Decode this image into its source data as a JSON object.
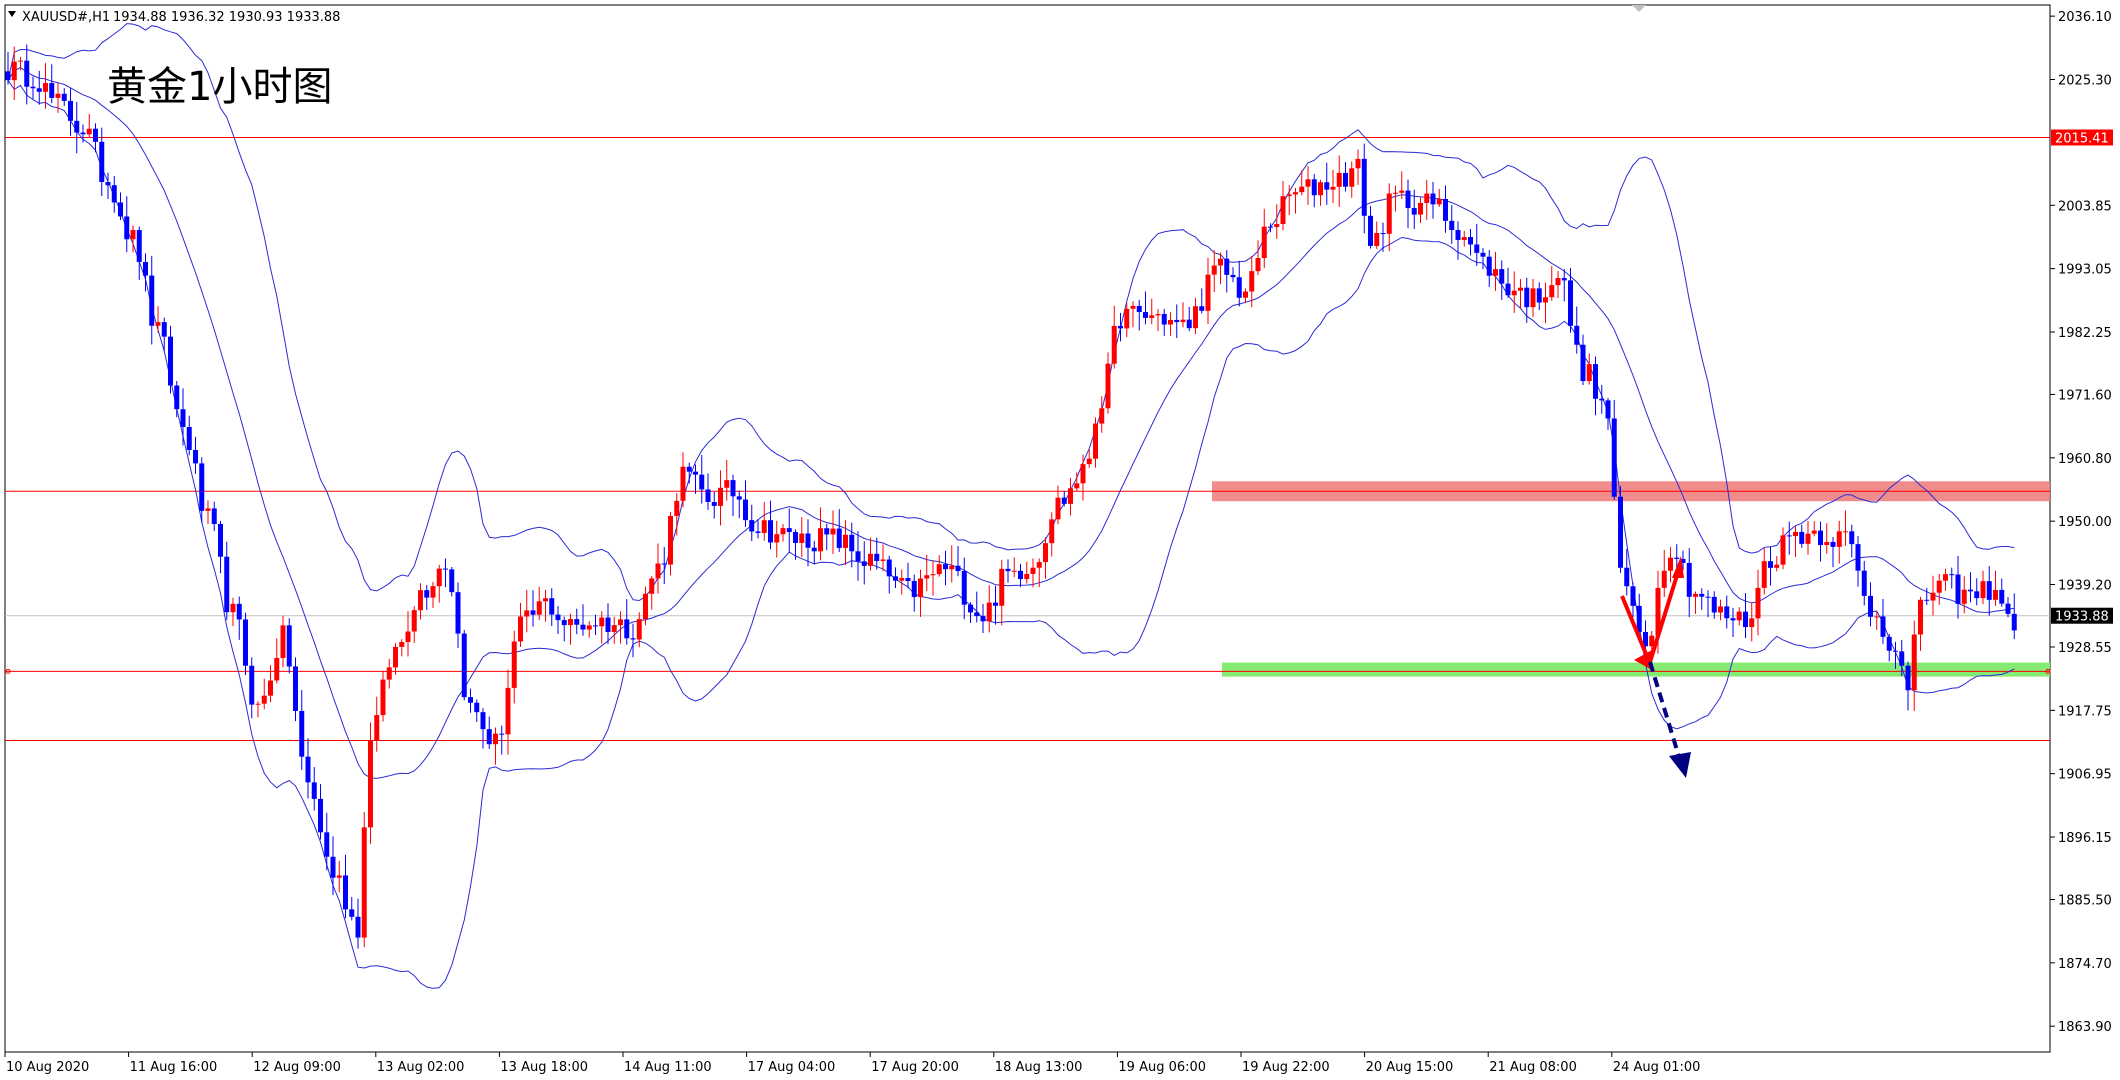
{
  "header": {
    "symbol": "XAUUSD#,H1",
    "ohlc": "1934.88 1936.32 1930.93 1933.88"
  },
  "chart_data": {
    "type": "candlestick",
    "title": "黄金1小时图",
    "ylim": [
      1859.5,
      2038.0
    ],
    "y_ticks": [
      2036.1,
      2025.3,
      2003.85,
      1993.05,
      1982.25,
      1971.6,
      1960.8,
      1950.0,
      1939.2,
      1928.55,
      1917.75,
      1906.95,
      1896.15,
      1885.5,
      1874.7,
      1863.9
    ],
    "y_tick_labels": [
      "2036.10",
      "2025.30",
      "2003.85",
      "1993.05",
      "1982.25",
      "1971.60",
      "1960.80",
      "1950.00",
      "1939.20",
      "1928.55",
      "1917.75",
      "1906.95",
      "1896.15",
      "1885.50",
      "1874.70",
      "1863.90"
    ],
    "x_labels": [
      "10 Aug 2020",
      "11 Aug 16:00",
      "12 Aug 09:00",
      "13 Aug 02:00",
      "13 Aug 18:00",
      "14 Aug 11:00",
      "17 Aug 04:00",
      "17 Aug 20:00",
      "18 Aug 13:00",
      "19 Aug 06:00",
      "19 Aug 22:00",
      "20 Aug 15:00",
      "21 Aug 08:00",
      "24 Aug 01:00"
    ],
    "levels": [
      {
        "price": 2015.41,
        "label": "2015.41",
        "color": "#ff0000",
        "labeled": true
      },
      {
        "price": 1955.1,
        "color": "#ff0000",
        "labeled": false
      },
      {
        "price": 1924.4,
        "color": "#ff0000",
        "labeled": false
      },
      {
        "price": 1912.6,
        "color": "#ff0000",
        "labeled": false
      }
    ],
    "current_price": {
      "price": 1933.88,
      "label": "1933.88"
    },
    "resistance_zone": {
      "from": 1953.4,
      "to": 1956.8,
      "color": "#f08080"
    },
    "support_zone": {
      "from": 1923.5,
      "to": 1925.9,
      "color": "#7fea6a"
    },
    "bull_color": "#ff0000",
    "bear_color": "#0000ff",
    "band_color": "#2b2bd6",
    "candle_anchors": [
      [
        0,
        2027
      ],
      [
        4,
        2026
      ],
      [
        8,
        2021
      ],
      [
        12,
        2017
      ],
      [
        16,
        2008
      ],
      [
        20,
        1998
      ],
      [
        24,
        1982
      ],
      [
        28,
        1966
      ],
      [
        32,
        1950
      ],
      [
        36,
        1934
      ],
      [
        40,
        1918
      ],
      [
        44,
        1930
      ],
      [
        48,
        1905
      ],
      [
        52,
        1890
      ],
      [
        56,
        1881
      ],
      [
        58,
        1914
      ],
      [
        62,
        1928
      ],
      [
        66,
        1938
      ],
      [
        70,
        1943
      ],
      [
        74,
        1918
      ],
      [
        78,
        1912
      ],
      [
        82,
        1932
      ],
      [
        86,
        1936
      ],
      [
        90,
        1932
      ],
      [
        94,
        1933
      ],
      [
        100,
        1932
      ],
      [
        104,
        1942
      ],
      [
        108,
        1958
      ],
      [
        112,
        1954
      ],
      [
        116,
        1955
      ],
      [
        120,
        1949
      ],
      [
        126,
        1947
      ],
      [
        132,
        1947
      ],
      [
        138,
        1943
      ],
      [
        144,
        1938
      ],
      [
        150,
        1942
      ],
      [
        156,
        1934
      ],
      [
        160,
        1941
      ],
      [
        164,
        1943
      ],
      [
        168,
        1953
      ],
      [
        172,
        1958
      ],
      [
        175,
        1971
      ],
      [
        178,
        1985
      ],
      [
        184,
        1985
      ],
      [
        188,
        1983
      ],
      [
        194,
        1993
      ],
      [
        198,
        1989
      ],
      [
        202,
        2001
      ],
      [
        206,
        2006
      ],
      [
        212,
        2008
      ],
      [
        216,
        2010
      ],
      [
        218,
        1997
      ],
      [
        222,
        2005
      ],
      [
        228,
        2004
      ],
      [
        232,
        2000
      ],
      [
        236,
        1994
      ],
      [
        240,
        1990
      ],
      [
        244,
        1988
      ],
      [
        248,
        1992
      ],
      [
        252,
        1976
      ],
      [
        256,
        1968
      ],
      [
        258,
        1940
      ],
      [
        262,
        1930
      ],
      [
        266,
        1946
      ],
      [
        270,
        1938
      ],
      [
        274,
        1934
      ],
      [
        278,
        1933
      ],
      [
        282,
        1944
      ],
      [
        286,
        1948
      ],
      [
        290,
        1948
      ],
      [
        294,
        1947
      ],
      [
        298,
        1935
      ],
      [
        302,
        1929
      ],
      [
        304,
        1920
      ],
      [
        306,
        1937
      ],
      [
        310,
        1939
      ],
      [
        314,
        1937
      ],
      [
        318,
        1939
      ],
      [
        320,
        1933
      ]
    ]
  }
}
